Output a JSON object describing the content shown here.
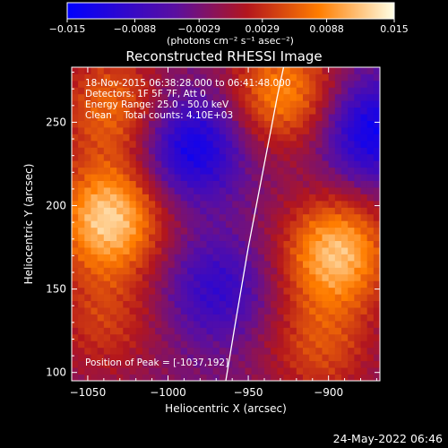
{
  "chart_data": {
    "type": "heatmap",
    "title": "Reconstructed RHESSI Image",
    "xlabel": "Heliocentric X (arcsec)",
    "ylabel": "Heliocentric Y (arcsec)",
    "x_range": [
      -1060,
      -868
    ],
    "y_range": [
      95,
      283
    ],
    "x_ticks": [
      -1050,
      -1000,
      -950,
      -900
    ],
    "x_tick_labels": [
      "−1050",
      "−1000",
      "−950",
      "−900"
    ],
    "y_ticks": [
      100,
      150,
      200,
      250
    ],
    "y_tick_labels": [
      "100",
      "150",
      "200",
      "250"
    ],
    "colorbar": {
      "range": [
        -0.015,
        0.015
      ],
      "ticks": [
        -0.015,
        -0.0088,
        -0.0029,
        0.0029,
        0.0088,
        0.015
      ],
      "tick_labels": [
        "−0.015",
        "−0.0088",
        "−0.0029",
        "0.0029",
        "0.0088",
        "0.015"
      ],
      "label": "(photons cm⁻² s⁻¹ asec⁻²)",
      "colors": [
        "#0000ff",
        "#5a0fa0",
        "#b3161d",
        "#ff7d00",
        "#ffffe6"
      ]
    },
    "annotations": [
      "18-Nov-2015 06:38:28.000 to 06:41:48.000",
      "Detectors: 1F 5F 7F, Att 0",
      "Energy Range: 25.0 - 50.0 keV",
      "Clean    Total counts: 4.10E+03"
    ],
    "peak_label": "Position of Peak = [-1037,192]",
    "peak_position": [
      -1037,
      192
    ],
    "limb_curve": {
      "x": [
        -964,
        -958,
        -950,
        -942,
        -936,
        -932,
        -928
      ],
      "y": [
        95,
        130,
        175,
        215,
        245,
        265,
        283
      ]
    },
    "sources": [
      {
        "x": -1037,
        "y": 192,
        "value": 0.015
      },
      {
        "x": -895,
        "y": 172,
        "value": 0.014
      },
      {
        "x": -928,
        "y": 268,
        "value": 0.011
      },
      {
        "x": -1035,
        "y": 260,
        "value": 0.009
      },
      {
        "x": -1040,
        "y": 130,
        "value": 0.006
      },
      {
        "x": -905,
        "y": 115,
        "value": 0.007
      }
    ],
    "minima": [
      {
        "x": -985,
        "y": 235,
        "value": -0.011
      },
      {
        "x": -970,
        "y": 150,
        "value": -0.007
      },
      {
        "x": -873,
        "y": 245,
        "value": -0.011
      }
    ]
  },
  "footer": {
    "date": "24-May-2022 06:46"
  }
}
